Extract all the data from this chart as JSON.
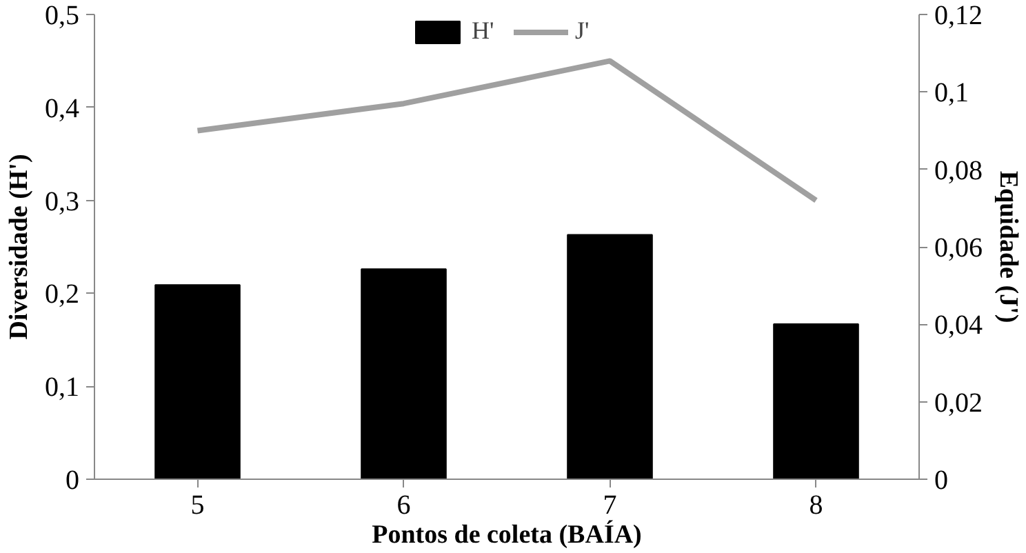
{
  "chart_data": {
    "type": "bar",
    "categories": [
      "5",
      "6",
      "7",
      "8"
    ],
    "xlabel": "Pontos de coleta (BAÍA)",
    "ylabel": "Diversidade (H')",
    "y2label": "Equidade (J')",
    "series": [
      {
        "name": "H'",
        "color": "#000000",
        "values": [
          0.209,
          0.226,
          0.263,
          0.167
        ]
      },
      {
        "name": "J'",
        "type": "line",
        "axis": "y2",
        "color": "#a0a0a0",
        "values": [
          0.09,
          0.097,
          0.108,
          0.072
        ]
      }
    ],
    "ylim": [
      0,
      0.5
    ],
    "yticks": [
      0,
      {
        "value": 0.1,
        "label": "0,1"
      },
      {
        "value": 0.2,
        "label": "0,2"
      },
      {
        "value": 0.3,
        "label": "0,3"
      },
      {
        "value": 0.4,
        "label": "0,4"
      },
      {
        "value": 0.5,
        "label": "0,5"
      }
    ],
    "y2lim": [
      0,
      0.12
    ],
    "y2ticks": [
      0,
      {
        "value": 0.02,
        "label": "0,02"
      },
      {
        "value": 0.04,
        "label": "0,04"
      },
      {
        "value": 0.06,
        "label": "0,06"
      },
      {
        "value": 0.08,
        "label": "0,08"
      },
      {
        "value": 0.1,
        "label": "0,1"
      },
      {
        "value": 0.12,
        "label": "0,12"
      }
    ],
    "grid": false,
    "legend": "top",
    "marker": "none",
    "line_style": "solid"
  }
}
